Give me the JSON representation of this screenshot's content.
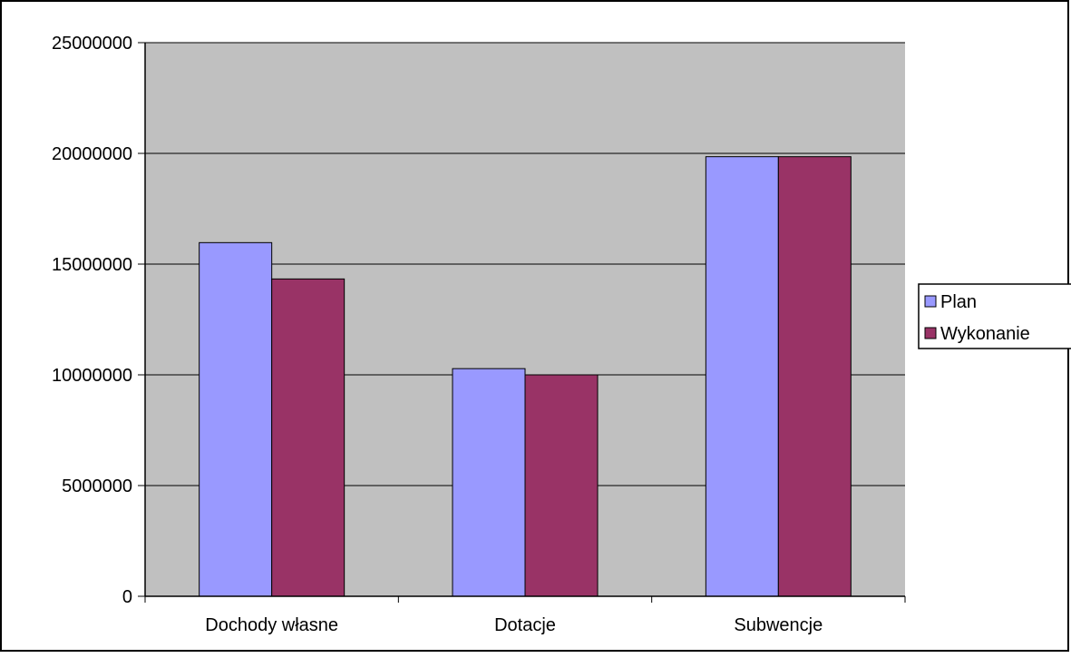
{
  "chart_data": {
    "type": "bar",
    "title": "",
    "xlabel": "",
    "ylabel": "",
    "categories": [
      "Dochody własne",
      "Dotacje",
      "Subwencje"
    ],
    "series": [
      {
        "name": "Plan",
        "values": [
          15970000,
          10280000,
          19850000
        ],
        "color": "#9999ff"
      },
      {
        "name": "Wykonanie",
        "values": [
          14330000,
          10000000,
          19850000
        ],
        "color": "#993366"
      }
    ],
    "ylim": [
      0,
      25000000
    ],
    "yticks": [
      "0",
      "5000000",
      "10000000",
      "15000000",
      "20000000",
      "25000000"
    ],
    "grid": true,
    "legend_position": "right",
    "plot_background": "#c0c0c0"
  }
}
